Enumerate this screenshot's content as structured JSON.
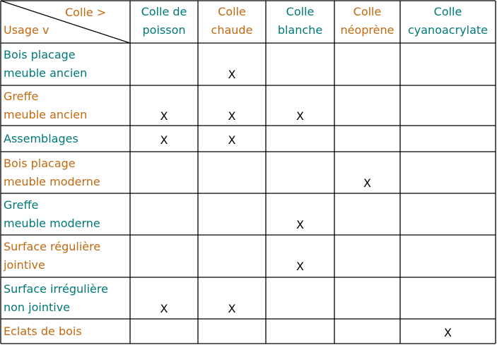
{
  "table": {
    "corner": {
      "column_label": "Colle >",
      "row_label": "Usage v"
    },
    "columns": [
      {
        "lines": [
          "Colle de",
          "poisson"
        ]
      },
      {
        "lines": [
          "Colle",
          "chaude"
        ]
      },
      {
        "lines": [
          "Colle",
          "blanche"
        ]
      },
      {
        "lines": [
          "Colle",
          "néoprène"
        ]
      },
      {
        "lines": [
          "Colle",
          "cyanoacrylate"
        ]
      }
    ],
    "rows": [
      {
        "lines": [
          "Bois placage",
          "meuble ancien"
        ],
        "cells": [
          null,
          "X",
          null,
          null,
          null
        ]
      },
      {
        "lines": [
          "Greffe",
          "meuble ancien"
        ],
        "cells": [
          "X",
          "X",
          "X",
          null,
          null
        ]
      },
      {
        "lines": [
          "Assemblages"
        ],
        "cells": [
          "X",
          "X",
          null,
          null,
          null
        ]
      },
      {
        "lines": [
          "Bois placage",
          "meuble moderne"
        ],
        "cells": [
          null,
          null,
          null,
          "X",
          null
        ]
      },
      {
        "lines": [
          "Greffe",
          "meuble moderne"
        ],
        "cells": [
          null,
          null,
          "X",
          null,
          null
        ]
      },
      {
        "lines": [
          "Surface régulière",
          "jointive"
        ],
        "cells": [
          null,
          null,
          "X",
          null,
          null
        ]
      },
      {
        "lines": [
          "Surface irrégulière",
          "non jointive"
        ],
        "cells": [
          "X",
          "X",
          null,
          null,
          null
        ]
      },
      {
        "lines": [
          "Eclats de bois"
        ],
        "cells": [
          null,
          null,
          null,
          null,
          "X"
        ]
      }
    ]
  }
}
